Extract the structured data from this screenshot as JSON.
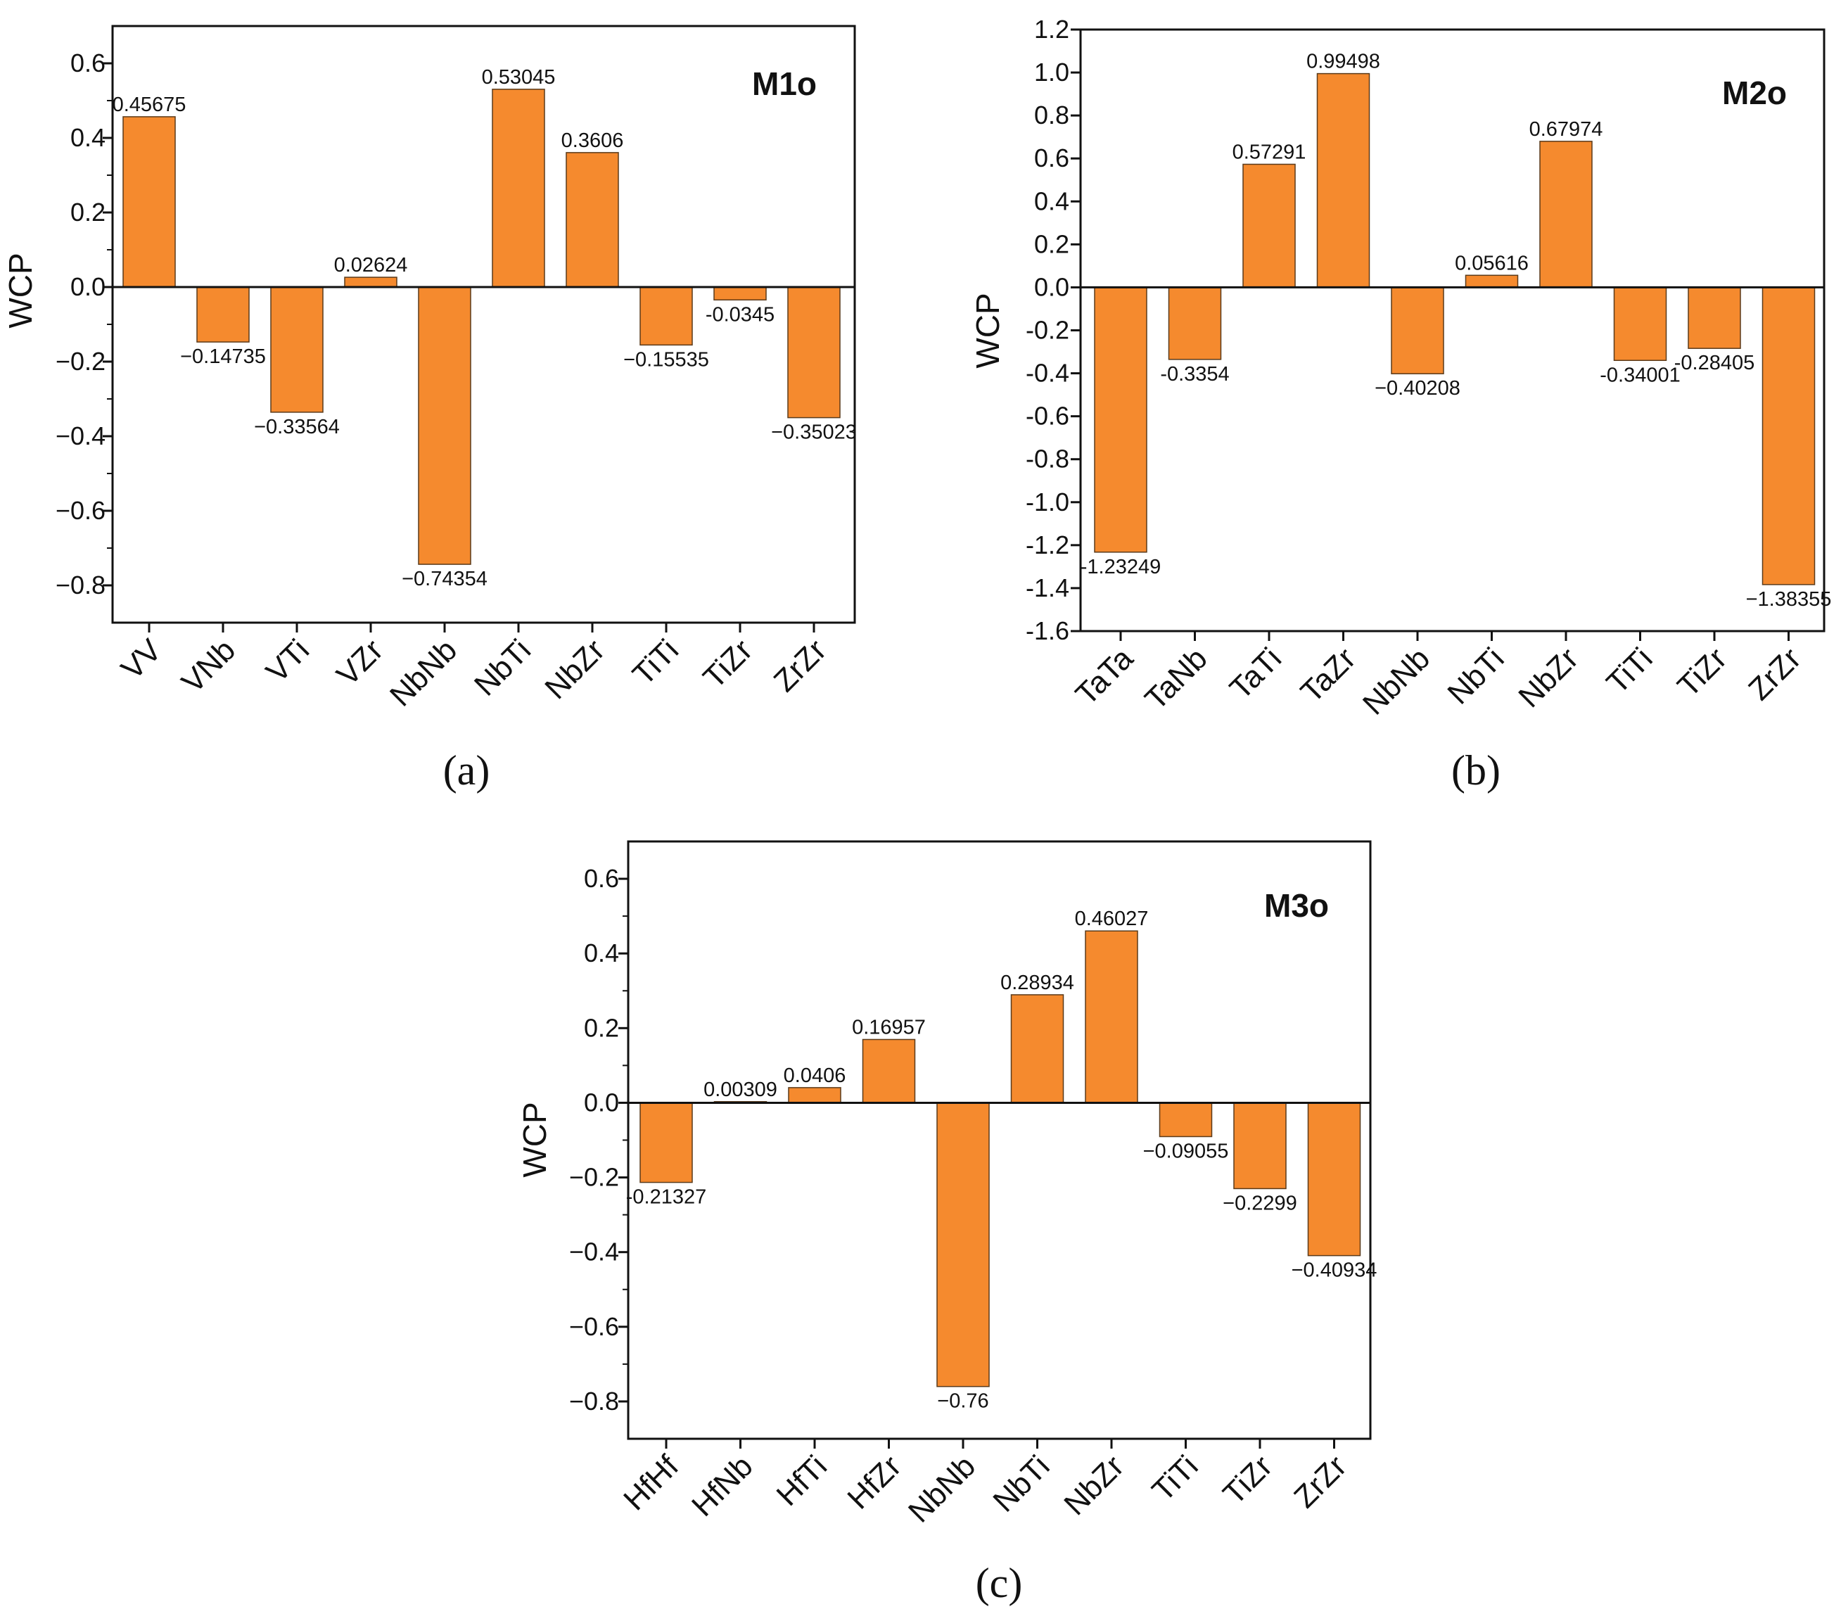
{
  "colors": {
    "bar": "#F58A2E",
    "axis": "#111111"
  },
  "chart_data": [
    {
      "type": "bar",
      "title": "M1o",
      "caption": "(a)",
      "ylabel": "WCP",
      "xlabel": "",
      "categories": [
        "VV",
        "VNb",
        "VTi",
        "VZr",
        "NbNb",
        "NbTi",
        "NbZr",
        "TiTi",
        "TiZr",
        "ZrZr"
      ],
      "values": [
        0.45675,
        -0.14735,
        -0.33564,
        0.02624,
        -0.74354,
        0.53045,
        0.3606,
        -0.15535,
        -0.0345,
        -0.35023
      ],
      "value_labels": [
        "0.45675",
        "−0.14735",
        "−0.33564",
        "0.02624",
        "−0.74354",
        "0.53045",
        "0.3606",
        "−0.15535",
        "-0.0345",
        "−0.35023"
      ],
      "ylim": [
        -0.9,
        0.7
      ],
      "yticks": [
        -0.8,
        -0.6,
        -0.4,
        -0.2,
        0.0,
        0.2,
        0.4,
        0.6
      ],
      "ytick_labels": [
        "−0.8",
        "−0.6",
        "−0.4",
        "−0.2",
        "0.0",
        "0.2",
        "0.4",
        "0.6"
      ],
      "grid": false,
      "legend": "none"
    },
    {
      "type": "bar",
      "title": "M2o",
      "caption": "(b)",
      "ylabel": "WCP",
      "xlabel": "",
      "categories": [
        "TaTa",
        "TaNb",
        "TaTi",
        "TaZr",
        "NbNb",
        "NbTi",
        "NbZr",
        "TiTi",
        "TiZr",
        "ZrZr"
      ],
      "values": [
        -1.23249,
        -0.3354,
        0.57291,
        0.99498,
        -0.40208,
        0.05616,
        0.67974,
        -0.34001,
        -0.28405,
        -1.38355
      ],
      "value_labels": [
        "-1.23249",
        "-0.3354",
        "0.57291",
        "0.99498",
        "−0.40208",
        "0.05616",
        "0.67974",
        "-0.34001",
        "-0.28405",
        "−1.38355"
      ],
      "ylim": [
        -1.6,
        1.2
      ],
      "yticks": [
        -1.6,
        -1.4,
        -1.2,
        -1.0,
        -0.8,
        -0.6,
        -0.4,
        -0.2,
        0.0,
        0.2,
        0.4,
        0.6,
        0.8,
        1.0,
        1.2
      ],
      "ytick_labels": [
        "-1.6",
        "-1.4",
        "-1.2",
        "-1.0",
        "-0.8",
        "-0.6",
        "-0.4",
        "-0.2",
        "0.0",
        "0.2",
        "0.4",
        "0.6",
        "0.8",
        "1.0",
        "1.2"
      ],
      "grid": false,
      "legend": "none"
    },
    {
      "type": "bar",
      "title": "M3o",
      "caption": "(c)",
      "ylabel": "WCP",
      "xlabel": "",
      "categories": [
        "HfHf",
        "HfNb",
        "HfTi",
        "HfZr",
        "NbNb",
        "NbTi",
        "NbZr",
        "TiTi",
        "TiZr",
        "ZrZr"
      ],
      "values": [
        -0.21327,
        0.00309,
        0.0406,
        0.16957,
        -0.76,
        0.28934,
        0.46027,
        -0.09055,
        -0.2299,
        -0.40934
      ],
      "value_labels": [
        "-0.21327",
        "0.00309",
        "0.0406",
        "0.16957",
        "−0.76",
        "0.28934",
        "0.46027",
        "−0.09055",
        "−0.2299",
        "−0.40934"
      ],
      "ylim": [
        -0.9,
        0.7
      ],
      "yticks": [
        -0.8,
        -0.6,
        -0.4,
        -0.2,
        0.0,
        0.2,
        0.4,
        0.6
      ],
      "ytick_labels": [
        "−0.8",
        "−0.6",
        "−0.4",
        "−0.2",
        "0.0",
        "0.2",
        "0.4",
        "0.6"
      ],
      "grid": false,
      "legend": "none"
    }
  ]
}
